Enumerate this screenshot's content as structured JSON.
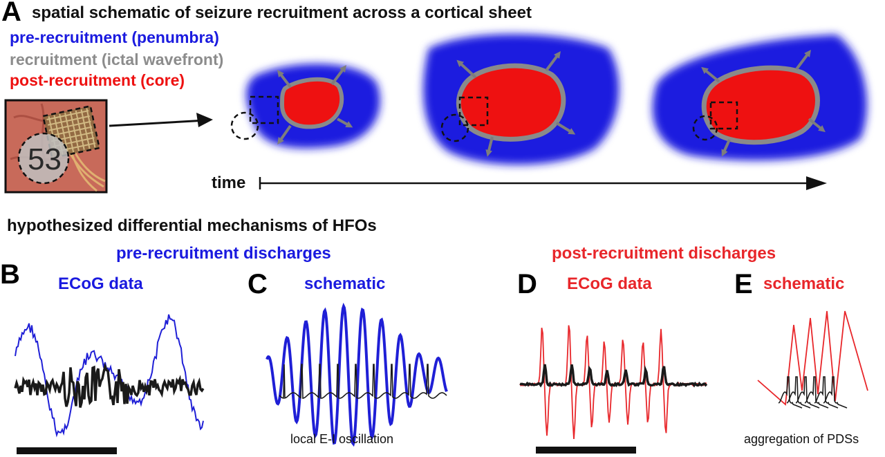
{
  "panels": {
    "a": "A",
    "b": "B",
    "c": "C",
    "d": "D",
    "e": "E"
  },
  "panel_a": {
    "title": "spatial schematic of seizure recruitment across a cortical sheet",
    "legend": [
      {
        "label": "pre-recruitment (penumbra)",
        "color": "#1a1adf"
      },
      {
        "label": "recruitment (ictal wavefront)",
        "color": "#8c8c8c"
      },
      {
        "label": "post-recruitment (core)",
        "color": "#ee1111"
      }
    ],
    "photo_label": "53",
    "time_label": "time"
  },
  "section_title": "hypothesized differential mechanisms of HFOs",
  "pre_header": "pre-recruitment discharges",
  "post_header": "post-recruitment discharges",
  "panel_b": {
    "title": "ECoG data"
  },
  "panel_c": {
    "title": "schematic",
    "caption": "local E-I oscillation"
  },
  "panel_d": {
    "title": "ECoG data"
  },
  "panel_e": {
    "title": "schematic",
    "caption": "aggregation of PDSs"
  },
  "colors": {
    "penumbra": "#1a1adf",
    "wavefront": "#8c8c8c",
    "core": "#ee1111",
    "pre": "#1a1adf",
    "post": "#e8262a",
    "trace_dark": "#1a1a1a"
  }
}
